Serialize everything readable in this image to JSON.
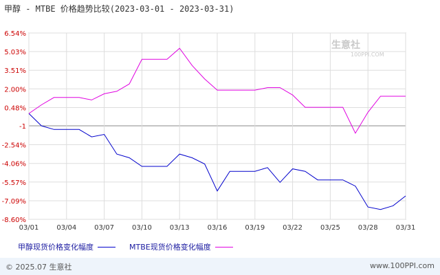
{
  "title": "甲醇 - MTBE 价格趋势比较(2023-03-01 - 2023-03-31)",
  "watermark": {
    "brand": "生意社",
    "url": "100PPI.COM"
  },
  "legend": {
    "series1": "甲醇现货价格变化幅度",
    "series2": "MTBE现货价格变化幅度"
  },
  "footer": {
    "copyright": "© 2025.07 生意社",
    "site": "www.100PPI.com"
  },
  "colors": {
    "series1": "#0000cc",
    "series2": "#e000e0",
    "grid": "#dddddd",
    "axis": "#333333",
    "ylabel": "#cc0000"
  },
  "chart_data": {
    "type": "line",
    "title": "甲醇 - MTBE 价格趋势比较(2023-03-01 - 2023-03-31)",
    "xlabel": "",
    "ylabel": "",
    "ylim": [
      -8.6,
      6.54
    ],
    "grid": true,
    "legend_position": "bottom",
    "y_ticks": [
      "6.54%",
      "5.03%",
      "3.51%",
      "2.00%",
      "0.48%",
      "-1",
      "-2.54%",
      "-4.06%",
      "-5.57%",
      "-7.09%",
      "-8.60%"
    ],
    "y_tick_values": [
      6.54,
      5.03,
      3.51,
      2.0,
      0.48,
      -1.0,
      -2.54,
      -4.06,
      -5.57,
      -7.09,
      -8.6
    ],
    "x_ticks": [
      "03/01",
      "03/04",
      "03/07",
      "03/10",
      "03/13",
      "03/16",
      "03/19",
      "03/22",
      "03/25",
      "03/28",
      "03/31"
    ],
    "x_tick_days": [
      1,
      4,
      7,
      10,
      13,
      16,
      19,
      22,
      25,
      28,
      31
    ],
    "series": [
      {
        "name": "甲醇现货价格变化幅度",
        "color": "#0000cc",
        "x": [
          1,
          2,
          3,
          4,
          5,
          6,
          7,
          8,
          9,
          10,
          11,
          12,
          13,
          14,
          15,
          16,
          17,
          18,
          19,
          20,
          21,
          22,
          23,
          24,
          25,
          26,
          27,
          28,
          29,
          30,
          31
        ],
        "values": [
          0.0,
          -1.0,
          -1.3,
          -1.3,
          -1.3,
          -1.9,
          -1.7,
          -3.3,
          -3.6,
          -4.3,
          -4.3,
          -4.3,
          -3.3,
          -3.6,
          -4.1,
          -6.3,
          -4.7,
          -4.7,
          -4.7,
          -4.4,
          -5.6,
          -4.5,
          -4.7,
          -5.4,
          -5.4,
          -5.4,
          -5.9,
          -7.6,
          -7.8,
          -7.5,
          -6.7
        ]
      },
      {
        "name": "MTBE现货价格变化幅度",
        "color": "#e000e0",
        "x": [
          1,
          2,
          3,
          4,
          5,
          6,
          7,
          8,
          9,
          10,
          11,
          12,
          13,
          14,
          15,
          16,
          17,
          18,
          19,
          20,
          21,
          22,
          23,
          24,
          25,
          26,
          27,
          28,
          29,
          30,
          31
        ],
        "values": [
          0.0,
          0.7,
          1.3,
          1.3,
          1.3,
          1.1,
          1.6,
          1.8,
          2.4,
          4.4,
          4.4,
          4.4,
          5.3,
          3.9,
          2.8,
          1.9,
          1.9,
          1.9,
          1.9,
          2.1,
          2.1,
          1.5,
          0.5,
          0.5,
          0.5,
          0.5,
          -1.6,
          0.1,
          1.4,
          1.4,
          1.4
        ]
      }
    ]
  }
}
